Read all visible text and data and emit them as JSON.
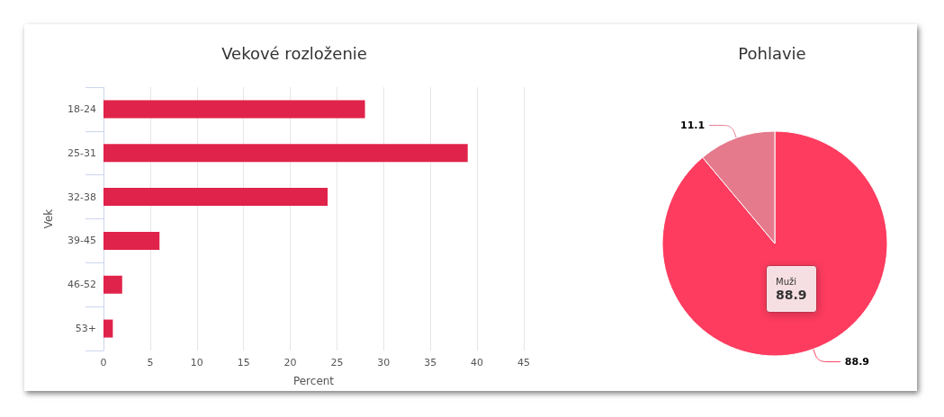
{
  "chart_data": [
    {
      "type": "bar",
      "title": "Vekové rozloženie",
      "orientation": "horizontal",
      "categories": [
        "18-24",
        "25-31",
        "32-38",
        "39-45",
        "46-52",
        "53+"
      ],
      "values": [
        28,
        39,
        24,
        6,
        2,
        1
      ],
      "color": "#e0234a",
      "xlim": [
        0,
        45
      ],
      "xticks": [
        0,
        5,
        10,
        15,
        20,
        25,
        30,
        35,
        40,
        45
      ],
      "xlabel": "Percent",
      "ylabel": "Vek",
      "grid": "x",
      "legend": false
    },
    {
      "type": "pie",
      "title": "Pohlavie",
      "categories": [
        "Muži",
        null
      ],
      "values": [
        88.9,
        11.1
      ],
      "colors": [
        "#fd3c5f",
        "#e57a8c"
      ],
      "data_labels": true,
      "legend": false,
      "annotations": [
        "88.9"
      ]
    }
  ]
}
